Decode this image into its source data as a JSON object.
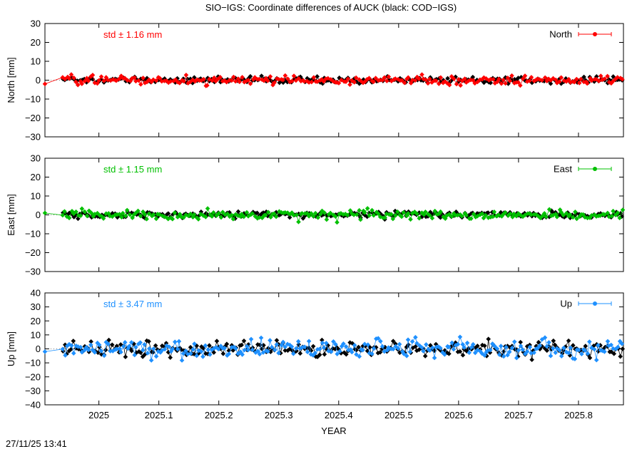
{
  "figure": {
    "title": "SIO−IGS: Coordinate differences of AUCK (black: COD−IGS)",
    "xlabel": "YEAR",
    "timestamp": "27/11/25 13:41"
  },
  "chart_data": [
    {
      "type": "scatter",
      "name": "north-panel",
      "ylabel": "North [mm]",
      "ylim": [
        -30,
        30
      ],
      "yticks": [
        -30,
        -20,
        -10,
        0,
        10,
        20,
        30
      ],
      "xlim": [
        2024.91,
        2025.875
      ],
      "xticks": [
        "2025",
        "2025.1",
        "2025.2",
        "2025.3",
        "2025.4",
        "2025.5",
        "2025.6",
        "2025.7",
        "2025.8"
      ],
      "xtick_values": [
        2025.0,
        2025.1,
        2025.2,
        2025.3,
        2025.4,
        2025.5,
        2025.6,
        2025.7,
        2025.8
      ],
      "std_text": "std ± 1.16 mm",
      "series": [
        {
          "name": "North",
          "color": "#ff0000",
          "spread": 1.16,
          "first_point": [
            2024.91,
            -2.0
          ]
        },
        {
          "color": "#000000",
          "spread": 0.9
        }
      ],
      "legend_position": "top-right",
      "grid": false
    },
    {
      "type": "scatter",
      "name": "east-panel",
      "ylabel": "East [mm]",
      "ylim": [
        -30,
        30
      ],
      "yticks": [
        -30,
        -20,
        -10,
        0,
        10,
        20,
        30
      ],
      "xlim": [
        2024.91,
        2025.875
      ],
      "xticks": [
        "2025",
        "2025.1",
        "2025.2",
        "2025.3",
        "2025.4",
        "2025.5",
        "2025.6",
        "2025.7",
        "2025.8"
      ],
      "xtick_values": [
        2025.0,
        2025.1,
        2025.2,
        2025.3,
        2025.4,
        2025.5,
        2025.6,
        2025.7,
        2025.8
      ],
      "std_text": "std ± 1.15 mm",
      "series": [
        {
          "name": "East",
          "color": "#00c000",
          "spread": 1.15,
          "first_point": [
            2024.91,
            1.0
          ]
        },
        {
          "color": "#000000",
          "spread": 0.9
        }
      ],
      "legend_position": "top-right",
      "grid": false
    },
    {
      "type": "scatter",
      "name": "up-panel",
      "ylabel": "Up [mm]",
      "ylim": [
        -40,
        40
      ],
      "yticks": [
        -40,
        -30,
        -20,
        -10,
        0,
        10,
        20,
        30,
        40
      ],
      "xlim": [
        2024.91,
        2025.875
      ],
      "xticks": [
        "2025",
        "2025.1",
        "2025.2",
        "2025.3",
        "2025.4",
        "2025.5",
        "2025.6",
        "2025.7",
        "2025.8"
      ],
      "xtick_values": [
        2025.0,
        2025.1,
        2025.2,
        2025.3,
        2025.4,
        2025.5,
        2025.6,
        2025.7,
        2025.8
      ],
      "std_text": "std ± 3.47 mm",
      "series": [
        {
          "name": "Up",
          "color": "#1e90ff",
          "spread": 3.47,
          "first_point": [
            2024.91,
            -2.0
          ]
        },
        {
          "color": "#000000",
          "spread": 2.8
        }
      ],
      "legend_position": "top-right",
      "grid": false
    }
  ]
}
